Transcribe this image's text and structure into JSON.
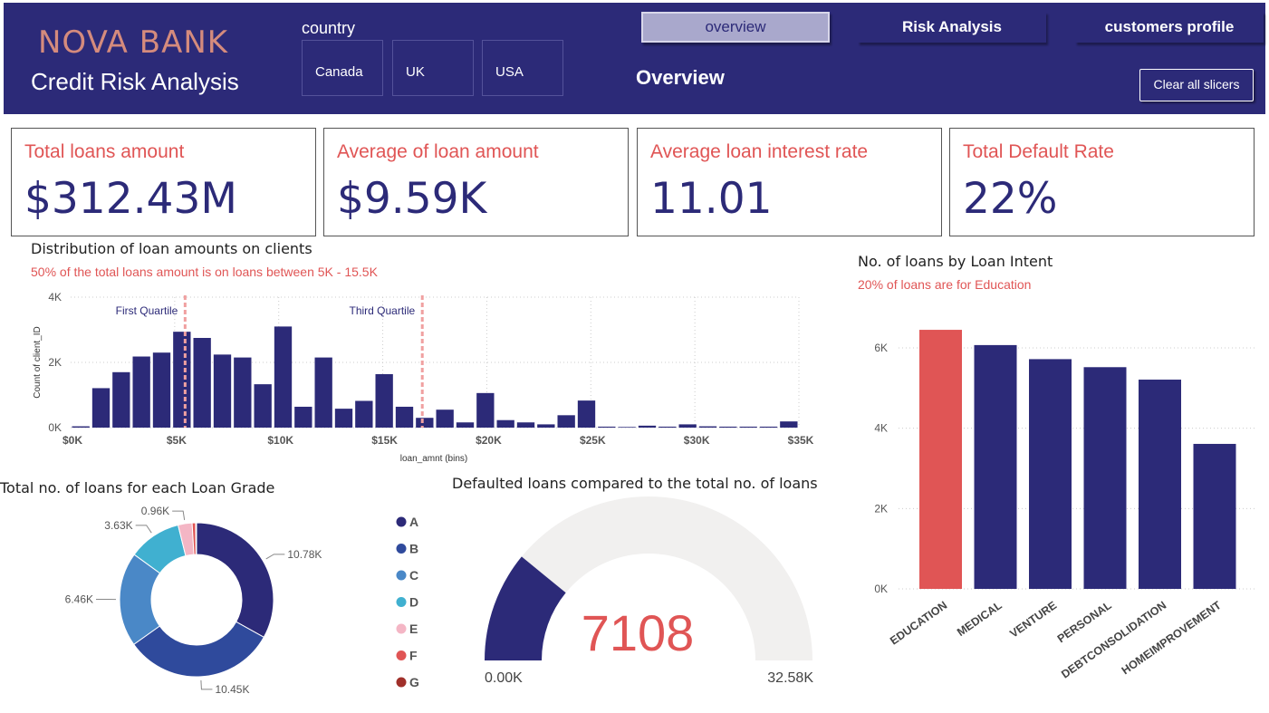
{
  "header": {
    "brand": "NOVA BANK",
    "subtitle": "Credit Risk Analysis",
    "slicer_label": "country",
    "countries": [
      "Canada",
      "UK",
      "USA"
    ],
    "nav": {
      "overview": "overview",
      "risk": "Risk Analysis",
      "customers": "customers profile"
    },
    "page_heading": "Overview",
    "clear_label": "Clear all slicers"
  },
  "kpis": [
    {
      "label": "Total loans amount",
      "value": "$312.43M"
    },
    {
      "label": "Average of loan amount",
      "value": "$9.59K"
    },
    {
      "label": "Average loan interest rate",
      "value": "11.01"
    },
    {
      "label": "Total Default Rate",
      "value": "22%"
    }
  ],
  "colors": {
    "navy": "#2c2a78",
    "red": "#e05555",
    "header": "#2c2a78"
  },
  "chart_data": [
    {
      "type": "bar",
      "title": "Distribution of loan amounts on clients",
      "subtitle": "50% of the total loans amount is on loans between 5K - 15.5K",
      "xlabel": "loan_amnt (bins)",
      "ylabel": "Count of client_ID",
      "ylim": [
        0,
        4000
      ],
      "yticks": [
        "0K",
        "2K",
        "4K"
      ],
      "xticks": [
        "$0K",
        "$5K",
        "$10K",
        "$15K",
        "$20K",
        "$25K",
        "$30K",
        "$35K"
      ],
      "xlim": [
        0,
        35000
      ],
      "bin_width": 1000,
      "x": [
        0,
        1000,
        2000,
        3000,
        4000,
        5000,
        6000,
        7000,
        8000,
        9000,
        10000,
        11000,
        12000,
        13000,
        14000,
        15000,
        16000,
        17000,
        18000,
        19000,
        20000,
        21000,
        22000,
        23000,
        24000,
        25000,
        26000,
        27000,
        28000,
        29000,
        30000,
        31000,
        32000,
        33000,
        34000,
        35000
      ],
      "values": [
        40,
        1210,
        1700,
        2180,
        2300,
        2940,
        2750,
        2240,
        2150,
        1330,
        3100,
        640,
        2150,
        580,
        820,
        1640,
        640,
        300,
        550,
        160,
        1060,
        230,
        160,
        100,
        380,
        830,
        30,
        20,
        60,
        30,
        100,
        40,
        30,
        30,
        30,
        190
      ],
      "annotations": [
        {
          "label": "First Quartile",
          "x": 5500
        },
        {
          "label": "Third Quartile",
          "x": 16900
        }
      ],
      "grid": true
    },
    {
      "type": "bar",
      "title": "No. of loans by Loan Intent",
      "subtitle": "20% of loans are for Education",
      "categories": [
        "EDUCATION",
        "MEDICAL",
        "VENTURE",
        "PERSONAL",
        "DEBTCONSOLIDATION",
        "HOMEIMPROVEMENT"
      ],
      "values": [
        6450,
        6070,
        5720,
        5520,
        5210,
        3610
      ],
      "highlight": "EDUCATION",
      "ylim": [
        0,
        7000
      ],
      "yticks": [
        "0K",
        "2K",
        "4K",
        "6K"
      ],
      "grid": true
    },
    {
      "type": "pie",
      "title": "Total no. of loans for each Loan Grade",
      "categories": [
        "A",
        "B",
        "C",
        "D",
        "E",
        "F",
        "G"
      ],
      "values": [
        10.78,
        10.45,
        6.46,
        3.63,
        0.96,
        0.24,
        0.06
      ],
      "value_labels": [
        "10.78K",
        "10.45K",
        "6.46K",
        "3.63K",
        "0.96K",
        "",
        ""
      ],
      "colors": [
        "#2c2a78",
        "#2f4a9c",
        "#4a88c7",
        "#40b0d0",
        "#f4b6c5",
        "#e05555",
        "#a0302a"
      ],
      "legend": "right"
    },
    {
      "type": "gauge",
      "title": "Defaulted loans compared to the total no. of loans",
      "value": 7108,
      "value_label": "7108",
      "min_label": "0.00K",
      "max_label": "32.58K",
      "min": 0,
      "max": 32580
    }
  ]
}
